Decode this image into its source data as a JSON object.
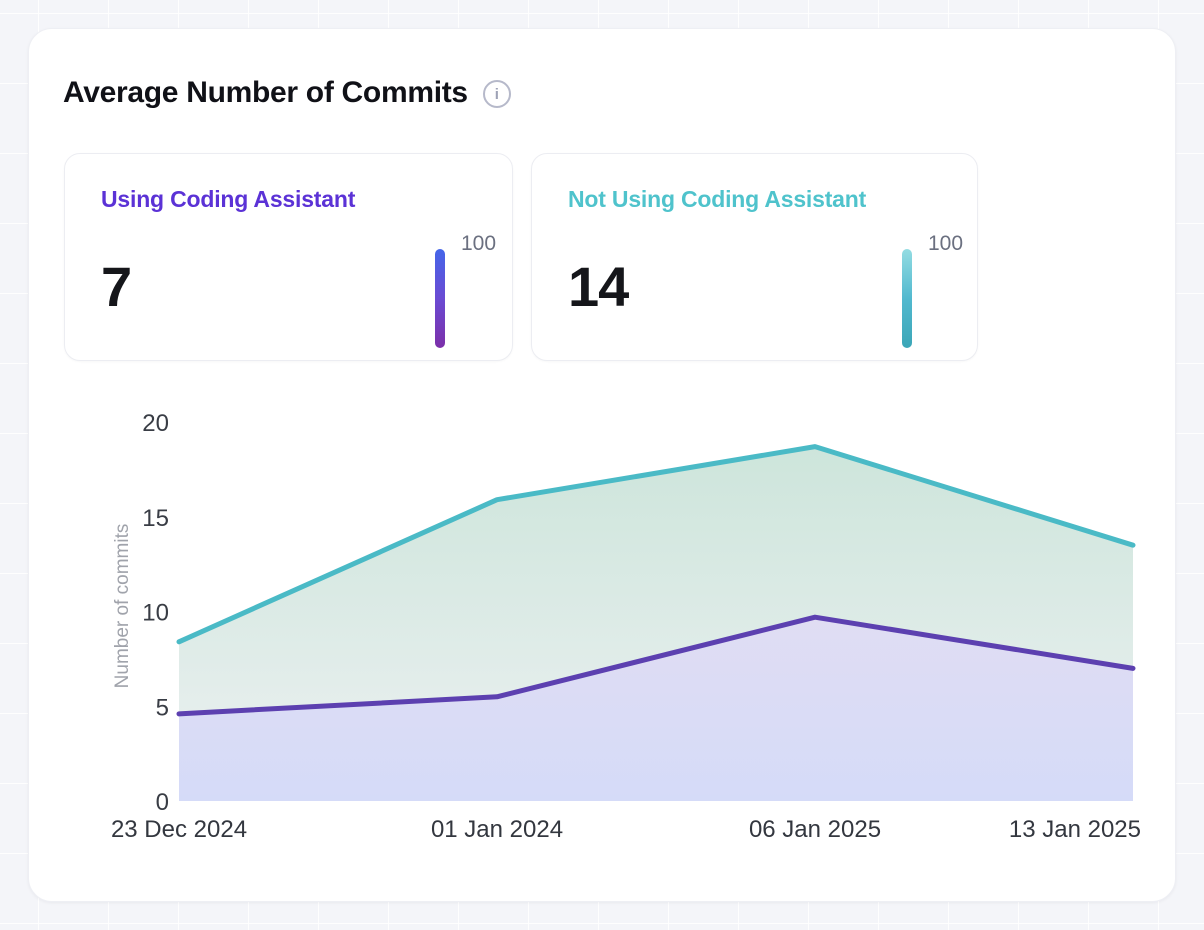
{
  "header": {
    "title": "Average Number of Commits",
    "info_icon": "i"
  },
  "stat_cards": [
    {
      "label": "Using Coding Assistant",
      "value": "7",
      "scale_max": "100",
      "accent_color": "#5B32D6",
      "bar_gradient": [
        "#4465E9",
        "#6A4BD3",
        "#7C2FA9"
      ]
    },
    {
      "label": "Not Using Coding Assistant",
      "value": "14",
      "scale_max": "100",
      "accent_color": "#4FC3CC",
      "bar_gradient": [
        "#93DCE2",
        "#52B9CF",
        "#3BA6B7"
      ]
    }
  ],
  "chart_data": {
    "type": "area",
    "title": "Average Number of Commits",
    "x": [
      "23 Dec 2024",
      "01 Jan 2024",
      "06 Jan 2025",
      "13 Jan 2025"
    ],
    "series": [
      {
        "name": "Not Using Coding Assistant",
        "color": "#4ABAC6",
        "fill_top": "#CDE5DB",
        "fill_bottom": "#EDF1F2",
        "values": [
          8.4,
          15.9,
          18.7,
          13.5
        ]
      },
      {
        "name": "Using Coding Assistant",
        "color": "#5C40B0",
        "fill_top": "#E0DDF3",
        "fill_bottom": "#D5DBF8",
        "values": [
          4.6,
          5.5,
          9.7,
          7.0
        ]
      }
    ],
    "xlabel": "",
    "ylabel": "Number of commits",
    "yticks": [
      0,
      5,
      10,
      15,
      20
    ],
    "ylim": [
      0,
      20
    ],
    "grid": false,
    "legend_position": "none"
  }
}
